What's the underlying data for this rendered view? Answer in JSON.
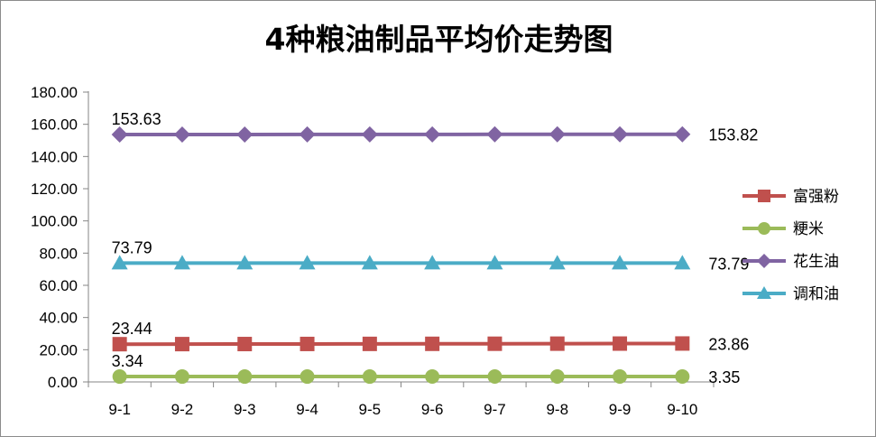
{
  "chart_data": {
    "type": "line",
    "title": "4种粮油制品平均价走势图",
    "xlabel": "",
    "ylabel": "",
    "categories": [
      "9-1",
      "9-2",
      "9-3",
      "9-4",
      "9-5",
      "9-6",
      "9-7",
      "9-8",
      "9-9",
      "9-10"
    ],
    "ylim": [
      0,
      180
    ],
    "yticks": [
      "0.00",
      "20.00",
      "40.00",
      "60.00",
      "80.00",
      "100.00",
      "120.00",
      "140.00",
      "160.00",
      "180.00"
    ],
    "grid": false,
    "legend_position": "right",
    "series": [
      {
        "name": "富强粉",
        "color": "#c0504d",
        "marker": "square",
        "values": [
          23.44,
          23.49,
          23.53,
          23.58,
          23.63,
          23.67,
          23.72,
          23.77,
          23.81,
          23.86
        ],
        "first_label": "23.44",
        "last_label": "23.86"
      },
      {
        "name": "粳米",
        "color": "#9bbb59",
        "marker": "circle",
        "values": [
          3.34,
          3.34,
          3.34,
          3.34,
          3.34,
          3.35,
          3.35,
          3.35,
          3.35,
          3.35
        ],
        "first_label": "3.34",
        "last_label": "3.35"
      },
      {
        "name": "花生油",
        "color": "#8064a2",
        "marker": "diamond",
        "values": [
          153.63,
          153.65,
          153.67,
          153.69,
          153.71,
          153.74,
          153.76,
          153.78,
          153.8,
          153.82
        ],
        "first_label": "153.63",
        "last_label": "153.82"
      },
      {
        "name": "调和油",
        "color": "#4bacc6",
        "marker": "triangle",
        "values": [
          73.79,
          73.79,
          73.79,
          73.79,
          73.79,
          73.79,
          73.79,
          73.79,
          73.79,
          73.79
        ],
        "first_label": "73.79",
        "last_label": "73.79"
      }
    ]
  }
}
